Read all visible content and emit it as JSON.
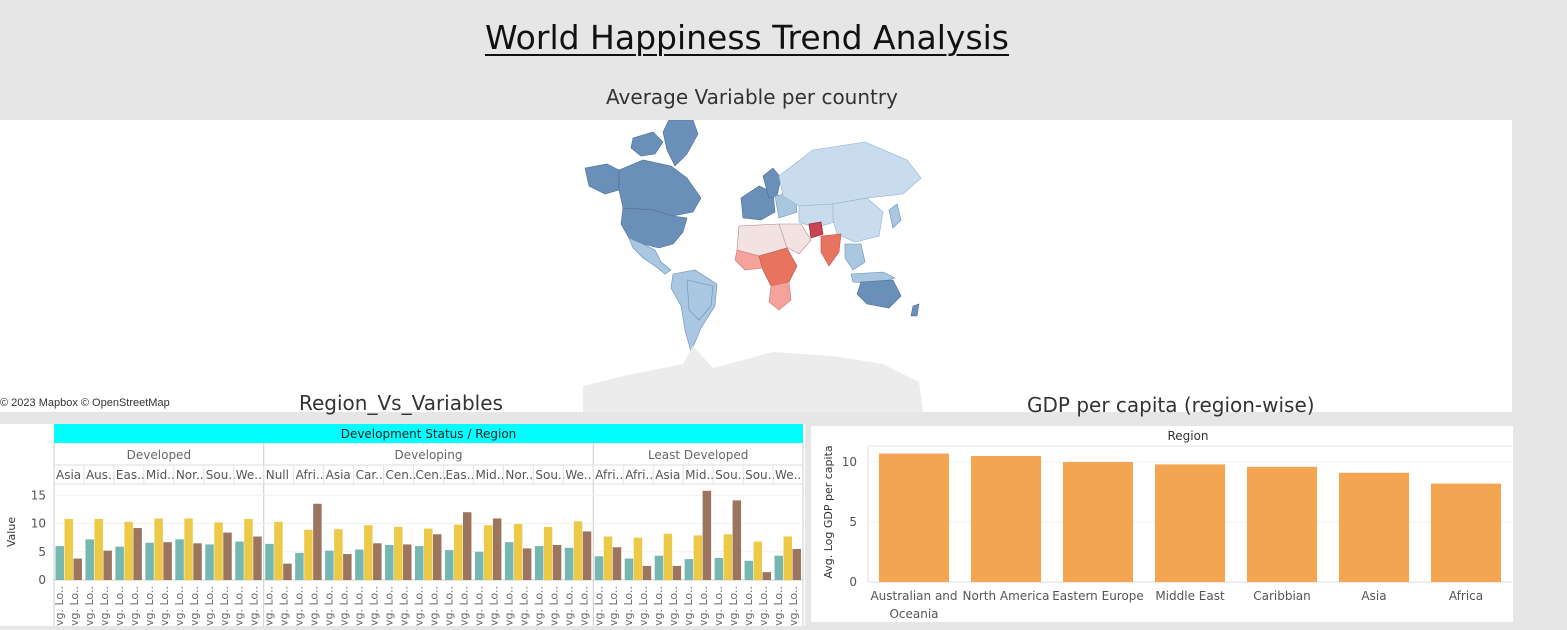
{
  "page": {
    "title": "World Happiness Trend Analysis"
  },
  "map": {
    "title": "Average Variable per country",
    "attribution": "© 2023 Mapbox © OpenStreetMap",
    "colors": {
      "high": "#6a8fb8",
      "mid": "#a9c7e1",
      "low": "#c9dced",
      "neutral": "#f2e2e2",
      "red1": "#f3a39a",
      "red2": "#e8735f",
      "red3": "#c94452",
      "water": "#ffffff",
      "antarctica": "#ececec"
    }
  },
  "region_vs_variables": {
    "title": "Region_Vs_Variables",
    "header": "Development Status / Region",
    "y_label": "Value",
    "colors": {
      "teal": "#76b7b2",
      "yellow": "#edc948",
      "brown": "#9c755f",
      "header_bg": "#00ffff"
    }
  },
  "gdp_region": {
    "title": "GDP per capita (region-wise)",
    "header": "Region",
    "y_label": "Avg. Log GDP per capita",
    "bar_color": "#f4a552"
  },
  "chart_data": [
    {
      "type": "bar",
      "title": "Region_Vs_Variables",
      "header": "Development Status / Region",
      "ylabel": "Value",
      "ylim": [
        0,
        17
      ],
      "yticks": [
        0,
        5,
        10,
        15
      ],
      "groups": [
        {
          "name": "Developed",
          "regions": [
            "Asia",
            "Aus..",
            "Eas..",
            "Mid..",
            "Nor..",
            "Sou..",
            "We.."
          ]
        },
        {
          "name": "Developing",
          "regions": [
            "Null",
            "Afri..",
            "Asia",
            "Car..",
            "Cen..",
            "Cen..",
            "Eas..",
            "Mid..",
            "Nor..",
            "Sou..",
            "We.."
          ]
        },
        {
          "name": "Least Developed",
          "regions": [
            "Afri..",
            "Afri..",
            "Asia",
            "Mid..",
            "Sou..",
            "Sou..",
            "We.."
          ]
        }
      ],
      "x_tick_label": "vg. Lo..",
      "series_colors": [
        "#76b7b2",
        "#edc948",
        "#9c755f"
      ],
      "values": [
        [
          6.0,
          10.8,
          3.8
        ],
        [
          7.2,
          10.8,
          5.2
        ],
        [
          5.9,
          10.3,
          9.2
        ],
        [
          6.6,
          10.9,
          6.7
        ],
        [
          7.2,
          10.9,
          6.5
        ],
        [
          6.3,
          10.2,
          8.4
        ],
        [
          6.8,
          10.8,
          7.7
        ],
        [
          6.4,
          10.3,
          2.9
        ],
        [
          4.8,
          8.9,
          13.5
        ],
        [
          5.2,
          9.0,
          4.6
        ],
        [
          5.4,
          9.7,
          6.5
        ],
        [
          6.2,
          9.4,
          6.3
        ],
        [
          6.0,
          9.1,
          8.1
        ],
        [
          5.3,
          9.8,
          12.0
        ],
        [
          5.0,
          9.7,
          10.9
        ],
        [
          6.7,
          9.9,
          5.6
        ],
        [
          6.0,
          9.4,
          6.2
        ],
        [
          5.7,
          10.4,
          8.6
        ],
        [
          4.2,
          7.7,
          5.8
        ],
        [
          3.8,
          7.5,
          2.5
        ],
        [
          4.3,
          8.2,
          2.5
        ],
        [
          3.7,
          7.9,
          15.8
        ],
        [
          3.9,
          8.1,
          14.1
        ],
        [
          3.4,
          6.8,
          1.4
        ],
        [
          4.3,
          7.7,
          5.5
        ]
      ]
    },
    {
      "type": "bar",
      "title": "GDP per capita (region-wise)",
      "header": "Region",
      "ylabel": "Avg. Log GDP per capita",
      "ylim": [
        0,
        11
      ],
      "yticks": [
        0,
        5,
        10
      ],
      "categories": [
        "Australian and Oceania",
        "North America",
        "Eastern Europe",
        "Middle East",
        "Caribbian",
        "Asia",
        "Africa"
      ],
      "values": [
        10.7,
        10.5,
        10.0,
        9.8,
        9.6,
        9.1,
        8.2
      ]
    }
  ]
}
